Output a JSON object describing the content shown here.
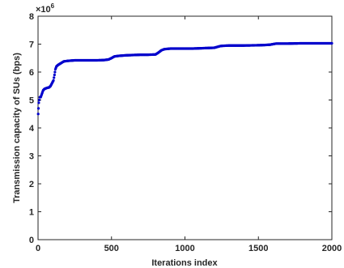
{
  "chart_data": {
    "type": "scatter",
    "xlabel": "Iterations index",
    "ylabel": "Transmission capacity of SUs (bps)",
    "xlim": [
      0,
      2000
    ],
    "ylim": [
      0,
      8000000
    ],
    "x_ticks": [
      "0",
      "500",
      "1000",
      "1500",
      "2000"
    ],
    "y_ticks": [
      "0",
      "1",
      "2",
      "3",
      "4",
      "5",
      "6",
      "7",
      "8"
    ],
    "y_multiplier": "×10",
    "y_multiplier_exponent": "6",
    "grid": false,
    "marker_color": "#0000cc",
    "series": [
      {
        "x": [
          1,
          3,
          5,
          8,
          12,
          18,
          25,
          35,
          45,
          55,
          65,
          75,
          85,
          95,
          105,
          112,
          118,
          125,
          135,
          150,
          175,
          200,
          250,
          300,
          350,
          400,
          450,
          480,
          500,
          520,
          550,
          600,
          650,
          700,
          750,
          800,
          820,
          840,
          860,
          900,
          950,
          1000,
          1050,
          1100,
          1150,
          1200,
          1220,
          1240,
          1260,
          1300,
          1400,
          1500,
          1550,
          1580,
          1600,
          1620,
          1700,
          1800,
          1900,
          2000
        ],
        "y": [
          4500000,
          4700000,
          4900000,
          5000000,
          5100000,
          5100000,
          5200000,
          5350000,
          5400000,
          5420000,
          5440000,
          5450000,
          5500000,
          5600000,
          5700000,
          5900000,
          6100000,
          6200000,
          6250000,
          6300000,
          6380000,
          6400000,
          6420000,
          6420000,
          6420000,
          6420000,
          6430000,
          6450000,
          6500000,
          6560000,
          6580000,
          6600000,
          6610000,
          6620000,
          6620000,
          6630000,
          6700000,
          6780000,
          6820000,
          6840000,
          6840000,
          6840000,
          6840000,
          6850000,
          6860000,
          6870000,
          6900000,
          6930000,
          6940000,
          6950000,
          6950000,
          6960000,
          6970000,
          6980000,
          7000000,
          7020000,
          7020000,
          7030000,
          7030000,
          7030000
        ]
      }
    ]
  }
}
